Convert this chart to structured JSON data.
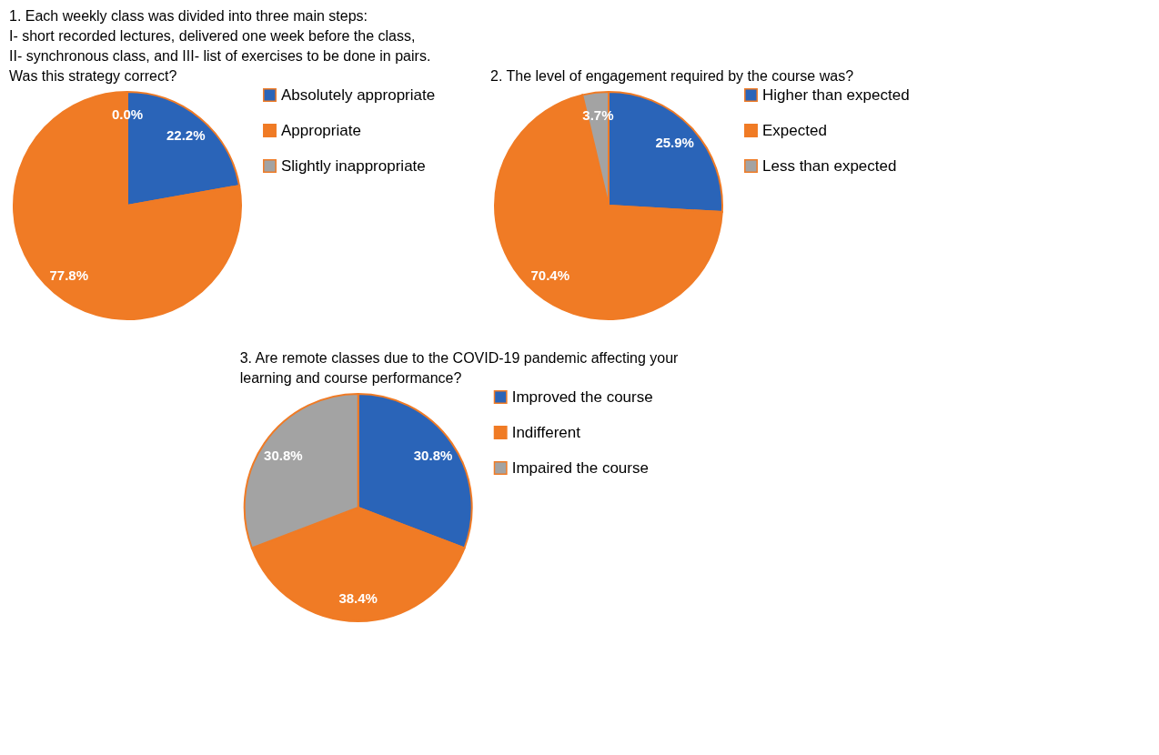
{
  "chart_data": [
    {
      "type": "pie",
      "title": "1. Each weekly class was divided into three main steps:\nI- short recorded lectures, delivered one week before the class,\nII- synchronous class, and III- list of exercises to be done in pairs.\nWas this strategy correct?",
      "categories": [
        "Absolutely appropriate",
        "Appropriate",
        "Slightly inappropriate"
      ],
      "values": [
        22.2,
        77.8,
        0.0
      ],
      "value_labels": [
        "22.2%",
        "77.8%",
        "0.0%"
      ],
      "colors": [
        "#2a64b8",
        "#f07b25",
        "#a3a3a3"
      ],
      "legend": "right"
    },
    {
      "type": "pie",
      "title": "2. The level of engagement required by the course was?",
      "categories": [
        "Higher than expected",
        "Expected",
        "Less than expected"
      ],
      "values": [
        25.9,
        70.4,
        3.7
      ],
      "value_labels": [
        "25.9%",
        "70.4%",
        "3.7%"
      ],
      "colors": [
        "#2a64b8",
        "#f07b25",
        "#a3a3a3"
      ],
      "legend": "right"
    },
    {
      "type": "pie",
      "title": "3. Are remote classes due to the COVID-19 pandemic affecting your\nlearning and course performance?",
      "categories": [
        "Improved the course",
        "Indifferent",
        "Impaired the course"
      ],
      "values": [
        30.8,
        38.4,
        30.8
      ],
      "value_labels": [
        "30.8%",
        "38.4%",
        "30.8%"
      ],
      "colors": [
        "#2a64b8",
        "#f07b25",
        "#a3a3a3"
      ],
      "legend": "right"
    }
  ]
}
